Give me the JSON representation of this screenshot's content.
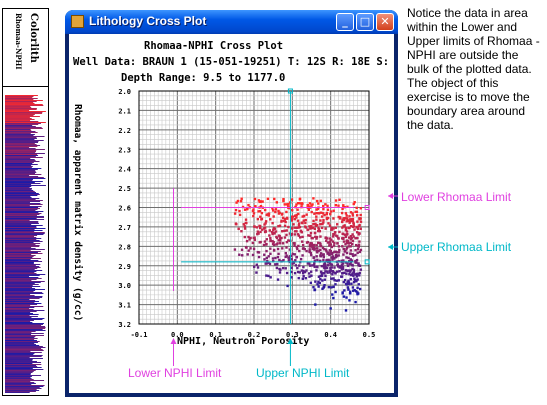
{
  "strip": {
    "title": "Colorlith",
    "subtitle": "Rhomaa-NPHI"
  },
  "window": {
    "title": "Lithology Cross Plot",
    "buttons": {
      "minimize": "_",
      "maximize": "□",
      "close": "✕"
    }
  },
  "plot": {
    "title": "Rhomaa-NPHI Cross Plot",
    "well_line": "Well Data: BRAUN 1 (15-051-19251) T: 12S R: 18E S:",
    "depth_line": "Depth Range: 9.5 to 1177.0"
  },
  "note": "Notice the data in area within the Lower and Upper limits of Rhomaa - NPHI are outside the bulk of the plotted data. The object of this exercise is to move the boundary area around the data.",
  "annotations": {
    "lower_rhomaa": "Lower Rhomaa Limit",
    "upper_rhomaa": "Upper Rhomaa Limit",
    "lower_nphi": "Lower NPHI Limit",
    "upper_nphi": "Upper NPHI Limit"
  },
  "colors": {
    "lower_limit": "#e040e0",
    "upper_limit": "#00b8c8",
    "grid": "#a0a0a0"
  },
  "chart_data": {
    "type": "scatter",
    "title": "Rhomaa-NPHI Cross Plot",
    "xlabel": "NPHI, Neutron Porosity",
    "ylabel": "Rhomaa, apparent matrix density (g/cc)",
    "xlim": [
      -0.1,
      0.5
    ],
    "ylim": [
      2.0,
      3.2
    ],
    "y_inverted": true,
    "x_ticks": [
      "-0.1",
      "0.0",
      "0.1",
      "0.2",
      "0.3",
      "0.4",
      "0.5"
    ],
    "y_ticks": [
      "2.0",
      "2.1",
      "2.2",
      "2.3",
      "2.4",
      "2.5",
      "2.6",
      "2.7",
      "2.8",
      "2.9",
      "3.0",
      "3.1",
      "3.2"
    ],
    "limits": {
      "lower_rhomaa": 2.6,
      "upper_rhomaa": 2.88,
      "lower_nphi": -0.01,
      "upper_nphi": 0.295
    },
    "point_cloud": {
      "nphi_range": [
        0.15,
        0.48
      ],
      "rhomaa_range": [
        2.55,
        3.15
      ],
      "color_low": "#ff2a2a",
      "color_high": "#1a1aa8"
    }
  }
}
